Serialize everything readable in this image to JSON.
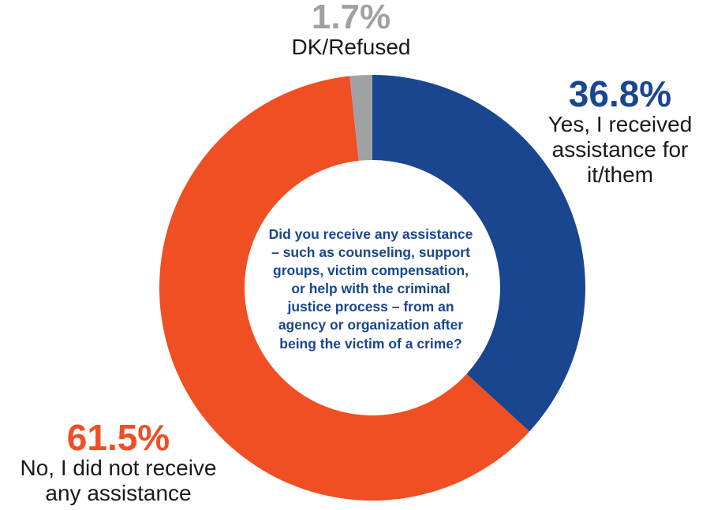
{
  "chart_data": {
    "type": "pie",
    "variant": "donut",
    "question": "Did you receive any assistance\n– such as counseling, support\ngroups, victim compensation,\nor help with the criminal\njustice process – from an\nagency or organization after\nbeing the victim of a crime?",
    "slices": [
      {
        "key": "yes",
        "percent_label": "36.8%",
        "label": "Yes, I received\nassistance for\nit/them",
        "value": 36.8,
        "color": "#1a468f"
      },
      {
        "key": "no",
        "percent_label": "61.5%",
        "label": "No, I did not receive\nany assistance",
        "value": 61.5,
        "color": "#f04e23"
      },
      {
        "key": "dk",
        "percent_label": "1.7%",
        "label": "DK/Refused",
        "value": 1.7,
        "color": "#a0a1a3"
      }
    ],
    "start_angle": "12 o'clock",
    "direction": "clockwise"
  },
  "colors": {
    "question_text": "#1a468f",
    "yes": "#1a468f",
    "no": "#f04e23",
    "dk": "#a0a1a3"
  }
}
